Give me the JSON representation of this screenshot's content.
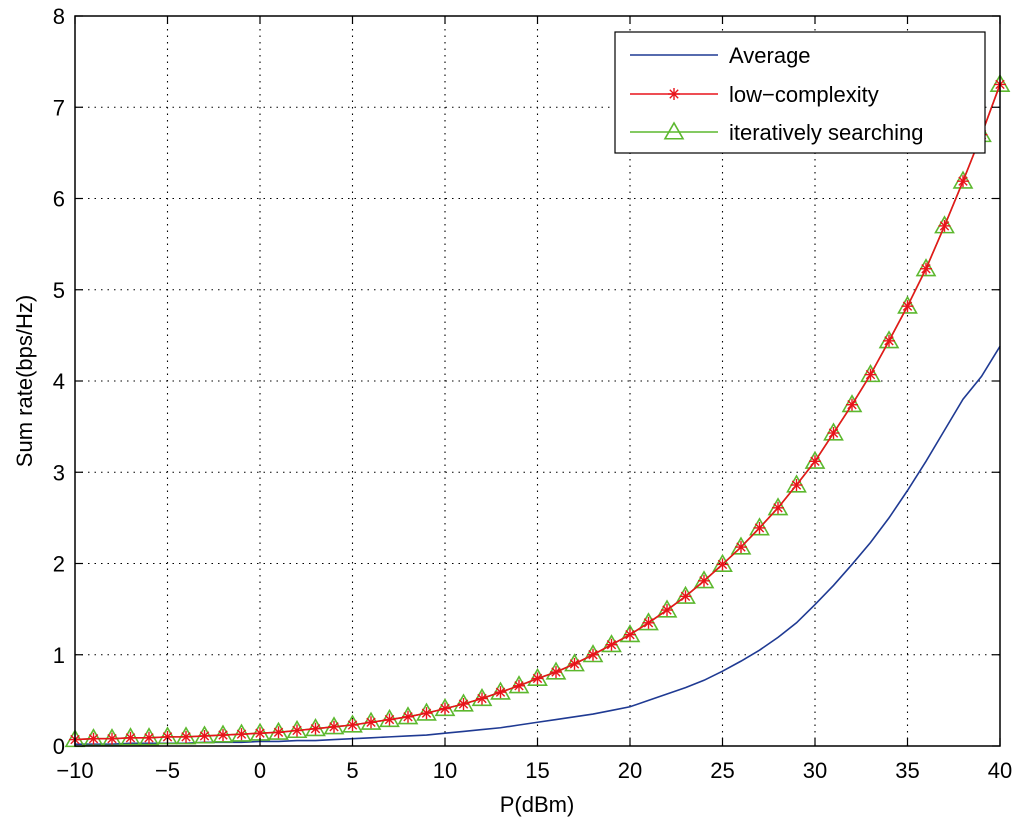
{
  "chart_data": {
    "type": "line",
    "xlabel": "P(dBm)",
    "ylabel": "Sum rate(bps/Hz)",
    "xlim": [
      -10,
      40
    ],
    "ylim": [
      0,
      8
    ],
    "xticks": [
      -10,
      -5,
      0,
      5,
      10,
      15,
      20,
      25,
      30,
      35,
      40
    ],
    "yticks": [
      0,
      1,
      2,
      3,
      4,
      5,
      6,
      7,
      8
    ],
    "grid": true,
    "legend_position": "top-right",
    "x": [
      -10,
      -9,
      -8,
      -7,
      -6,
      -5,
      -4,
      -3,
      -2,
      -1,
      0,
      1,
      2,
      3,
      4,
      5,
      6,
      7,
      8,
      9,
      10,
      11,
      12,
      13,
      14,
      15,
      16,
      17,
      18,
      19,
      20,
      21,
      22,
      23,
      24,
      25,
      26,
      27,
      28,
      29,
      30,
      31,
      32,
      33,
      34,
      35,
      36,
      37,
      38,
      39,
      40
    ],
    "series": [
      {
        "name": "Average",
        "color": "#1f3a93",
        "marker": "none",
        "values": [
          0.02,
          0.02,
          0.02,
          0.03,
          0.03,
          0.03,
          0.03,
          0.04,
          0.04,
          0.04,
          0.05,
          0.05,
          0.06,
          0.06,
          0.07,
          0.08,
          0.09,
          0.1,
          0.11,
          0.12,
          0.14,
          0.16,
          0.18,
          0.2,
          0.23,
          0.26,
          0.29,
          0.32,
          0.35,
          0.39,
          0.43,
          0.5,
          0.57,
          0.64,
          0.72,
          0.82,
          0.93,
          1.05,
          1.19,
          1.35,
          1.55,
          1.76,
          1.99,
          2.23,
          2.5,
          2.8,
          3.12,
          3.46,
          3.8,
          4.05,
          4.38
        ]
      },
      {
        "name": "low−complexity",
        "color": "#e8141b",
        "marker": "star",
        "values": [
          0.07,
          0.08,
          0.08,
          0.09,
          0.09,
          0.1,
          0.1,
          0.11,
          0.12,
          0.13,
          0.14,
          0.15,
          0.17,
          0.19,
          0.21,
          0.23,
          0.26,
          0.29,
          0.32,
          0.36,
          0.41,
          0.46,
          0.52,
          0.59,
          0.66,
          0.74,
          0.81,
          0.9,
          1.0,
          1.11,
          1.22,
          1.35,
          1.49,
          1.64,
          1.81,
          1.99,
          2.18,
          2.39,
          2.61,
          2.86,
          3.12,
          3.43,
          3.74,
          4.07,
          4.44,
          4.82,
          5.23,
          5.7,
          6.19,
          6.7,
          7.25
        ]
      },
      {
        "name": "iteratively searching",
        "color": "#5cb82e",
        "marker": "triangle",
        "values": [
          0.07,
          0.08,
          0.08,
          0.09,
          0.09,
          0.1,
          0.1,
          0.11,
          0.12,
          0.13,
          0.14,
          0.15,
          0.17,
          0.19,
          0.21,
          0.23,
          0.26,
          0.29,
          0.32,
          0.36,
          0.41,
          0.46,
          0.52,
          0.59,
          0.66,
          0.74,
          0.81,
          0.9,
          1.0,
          1.11,
          1.22,
          1.35,
          1.49,
          1.64,
          1.81,
          1.99,
          2.18,
          2.39,
          2.61,
          2.86,
          3.12,
          3.43,
          3.74,
          4.07,
          4.44,
          4.82,
          5.23,
          5.7,
          6.19,
          6.7,
          7.25
        ]
      }
    ]
  }
}
